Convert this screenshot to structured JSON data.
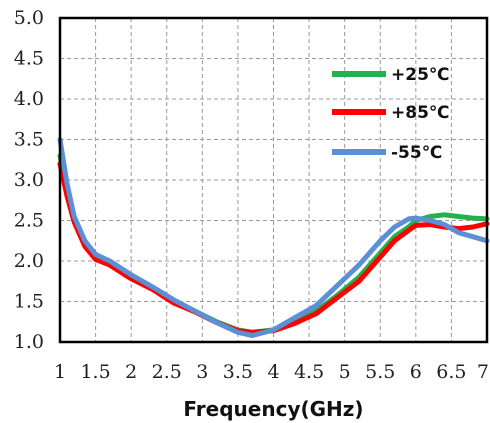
{
  "chart_data": {
    "type": "line",
    "title": "",
    "xlabel": "Frequency(GHz)",
    "ylabel": "",
    "xlim": [
      1,
      7
    ],
    "ylim": [
      1.0,
      5.0
    ],
    "x_ticks": [
      "1",
      "1.5",
      "2",
      "2.5",
      "3",
      "3.5",
      "4",
      "4.5",
      "5",
      "5.5",
      "6",
      "6.5",
      "7"
    ],
    "y_ticks": [
      "1.0",
      "1.5",
      "2.0",
      "2.5",
      "3.0",
      "3.5",
      "4.0",
      "4.5",
      "5.0"
    ],
    "grid": true,
    "legend_position": "top-right",
    "series": [
      {
        "name": "+25℃",
        "color": "#22b14c",
        "x": [
          1.0,
          1.1,
          1.2,
          1.35,
          1.5,
          1.7,
          2.0,
          2.3,
          2.6,
          2.9,
          3.2,
          3.5,
          3.7,
          4.0,
          4.3,
          4.6,
          4.9,
          5.2,
          5.5,
          5.7,
          5.9,
          6.0,
          6.2,
          6.4,
          6.6,
          6.8,
          7.0
        ],
        "y": [
          3.3,
          2.85,
          2.5,
          2.22,
          2.05,
          1.98,
          1.8,
          1.67,
          1.5,
          1.38,
          1.25,
          1.15,
          1.12,
          1.15,
          1.25,
          1.38,
          1.58,
          1.8,
          2.1,
          2.3,
          2.42,
          2.5,
          2.55,
          2.57,
          2.55,
          2.53,
          2.52
        ]
      },
      {
        "name": "+85℃",
        "color": "#ff0000",
        "x": [
          1.0,
          1.1,
          1.2,
          1.35,
          1.5,
          1.7,
          2.0,
          2.3,
          2.6,
          2.9,
          3.2,
          3.5,
          3.7,
          4.0,
          4.3,
          4.6,
          4.9,
          5.2,
          5.5,
          5.7,
          5.9,
          6.0,
          6.2,
          6.4,
          6.6,
          6.8,
          7.0
        ],
        "y": [
          3.2,
          2.8,
          2.48,
          2.18,
          2.02,
          1.95,
          1.78,
          1.65,
          1.48,
          1.37,
          1.24,
          1.14,
          1.12,
          1.14,
          1.23,
          1.35,
          1.55,
          1.75,
          2.05,
          2.25,
          2.38,
          2.44,
          2.45,
          2.42,
          2.4,
          2.42,
          2.46
        ]
      },
      {
        "name": "-55℃",
        "color": "#5b8fd6",
        "x": [
          1.0,
          1.1,
          1.2,
          1.35,
          1.5,
          1.7,
          2.0,
          2.3,
          2.6,
          2.9,
          3.2,
          3.5,
          3.7,
          4.0,
          4.3,
          4.6,
          4.9,
          5.2,
          5.5,
          5.7,
          5.9,
          6.0,
          6.2,
          6.4,
          6.6,
          6.8,
          7.0
        ],
        "y": [
          3.5,
          2.95,
          2.55,
          2.25,
          2.08,
          2.0,
          1.83,
          1.68,
          1.52,
          1.38,
          1.24,
          1.12,
          1.08,
          1.15,
          1.3,
          1.45,
          1.7,
          1.95,
          2.25,
          2.42,
          2.52,
          2.53,
          2.5,
          2.45,
          2.35,
          2.3,
          2.25
        ]
      }
    ]
  }
}
